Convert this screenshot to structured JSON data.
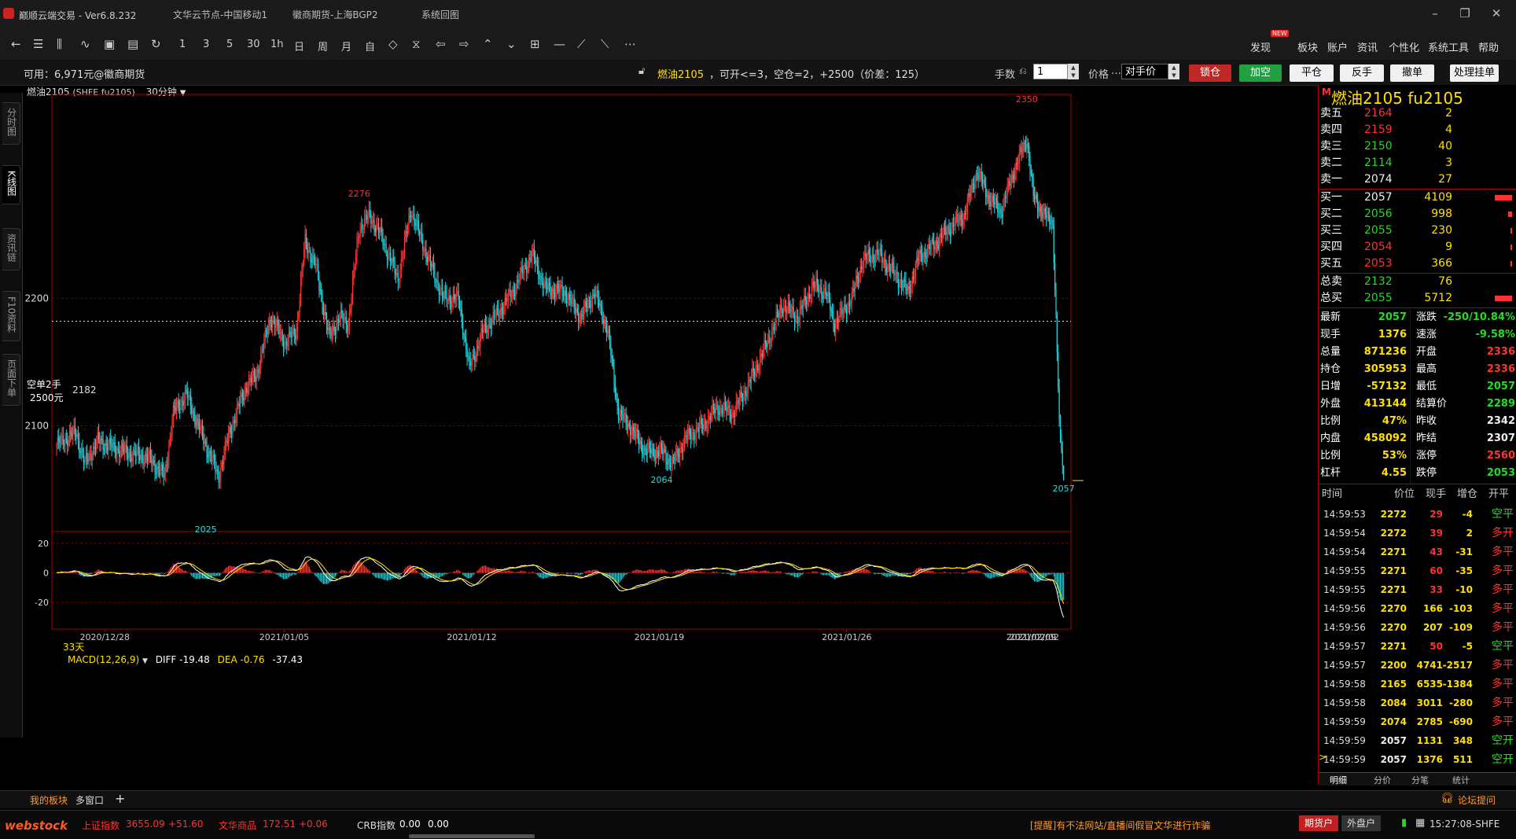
{
  "titlebar": {
    "app_title": "巅顺云端交易  -  Ver6.8.232",
    "tabs": [
      "文华云节点-中国移动1",
      "徽商期货-上海BGP2",
      "系统回图"
    ]
  },
  "menu": [
    "发现",
    "板块",
    "账户",
    "资讯",
    "个性化",
    "系统工具",
    "帮助"
  ],
  "menu_badge": "NEW",
  "toolbar": {
    "period_buttons": [
      "1",
      "3",
      "5",
      "30",
      "1h",
      "日",
      "周",
      "月",
      "自"
    ]
  },
  "orderbar": {
    "available": "可用：6,971元@徽商期货",
    "contract_name": "燃油2105",
    "position_info": "，可开<=3，空仓=2，+2500（价差：125）",
    "lots_label": "手数",
    "lots_value": "1",
    "price_label": "价格",
    "price_value": "对手价",
    "btn_lock": "锁仓",
    "btn_add_short": "加空",
    "btn_close": "平仓",
    "btn_reverse": "反手",
    "btn_cancel": "撤单",
    "btn_pending": "处理挂单"
  },
  "left_tabs": [
    "分时图",
    "K线图",
    "资讯链",
    "F10资料",
    "页面下单"
  ],
  "chart_header": {
    "contract": "燃油2105",
    "exchange": "(SHFE fu2105)",
    "period": "30分钟"
  },
  "chart_labels": {
    "short_position": "空单2手",
    "short_profit": "2500元",
    "position_line": "2182",
    "days": "33天",
    "macd_label": "MACD(12,26,9)",
    "diff": "DIFF -19.48",
    "dea": "DEA -0.76",
    "macd_value": "-37.43"
  },
  "chart_data": {
    "type": "candlestick",
    "y_ticks": [
      2100,
      2200
    ],
    "ylim": [
      2017,
      2360
    ],
    "x_ticks": [
      "2020/12/28",
      "2021/01/05",
      "2021/01/12",
      "2021/01/19",
      "2021/01/26",
      "2021/02/02",
      "2021/02/09"
    ],
    "annotations": [
      {
        "label": "2276",
        "value": 2276
      },
      {
        "label": "2350",
        "value": 2350
      },
      {
        "label": "2064",
        "value": 2064
      },
      {
        "label": "2025",
        "value": 2025
      },
      {
        "label": "2057",
        "value": 2057
      }
    ],
    "macd": {
      "y_ticks": [
        20,
        0,
        -20
      ],
      "ylim": [
        -38,
        28
      ]
    },
    "waypoints": [
      [
        0,
        2085
      ],
      [
        18,
        2095
      ],
      [
        26,
        2070
      ],
      [
        38,
        2088
      ],
      [
        55,
        2082
      ],
      [
        70,
        2078
      ],
      [
        85,
        2075
      ],
      [
        100,
        2060
      ],
      [
        108,
        2110
      ],
      [
        120,
        2125
      ],
      [
        138,
        2085
      ],
      [
        150,
        2060
      ],
      [
        160,
        2095
      ],
      [
        175,
        2130
      ],
      [
        185,
        2140
      ],
      [
        198,
        2185
      ],
      [
        212,
        2165
      ],
      [
        222,
        2175
      ],
      [
        230,
        2245
      ],
      [
        240,
        2225
      ],
      [
        252,
        2170
      ],
      [
        262,
        2185
      ],
      [
        270,
        2180
      ],
      [
        280,
        2255
      ],
      [
        290,
        2265
      ],
      [
        300,
        2250
      ],
      [
        316,
        2215
      ],
      [
        328,
        2270
      ],
      [
        338,
        2245
      ],
      [
        348,
        2222
      ],
      [
        358,
        2200
      ],
      [
        372,
        2200
      ],
      [
        382,
        2145
      ],
      [
        395,
        2175
      ],
      [
        410,
        2190
      ],
      [
        422,
        2205
      ],
      [
        440,
        2235
      ],
      [
        452,
        2208
      ],
      [
        470,
        2205
      ],
      [
        485,
        2185
      ],
      [
        498,
        2205
      ],
      [
        510,
        2175
      ],
      [
        520,
        2110
      ],
      [
        530,
        2100
      ],
      [
        545,
        2080
      ],
      [
        560,
        2080
      ],
      [
        570,
        2070
      ],
      [
        582,
        2090
      ],
      [
        598,
        2100
      ],
      [
        612,
        2115
      ],
      [
        626,
        2110
      ],
      [
        642,
        2135
      ],
      [
        660,
        2170
      ],
      [
        672,
        2195
      ],
      [
        686,
        2185
      ],
      [
        700,
        2210
      ],
      [
        712,
        2205
      ],
      [
        720,
        2180
      ],
      [
        736,
        2200
      ],
      [
        746,
        2230
      ],
      [
        760,
        2235
      ],
      [
        775,
        2220
      ],
      [
        788,
        2205
      ],
      [
        798,
        2232
      ],
      [
        810,
        2240
      ],
      [
        826,
        2255
      ],
      [
        840,
        2265
      ],
      [
        852,
        2300
      ],
      [
        862,
        2280
      ],
      [
        874,
        2268
      ],
      [
        886,
        2300
      ],
      [
        898,
        2325
      ],
      [
        904,
        2280
      ],
      [
        914,
        2265
      ],
      [
        922,
        2260
      ],
      [
        928,
        2105
      ],
      [
        932,
        2057
      ]
    ]
  },
  "quote": {
    "title": "燃油2105  fu2105",
    "asks": [
      {
        "label": "卖五",
        "price": "2164",
        "vol": "2"
      },
      {
        "label": "卖四",
        "price": "2159",
        "vol": "4"
      },
      {
        "label": "卖三",
        "price": "2150",
        "vol": "40"
      },
      {
        "label": "卖二",
        "price": "2114",
        "vol": "3"
      },
      {
        "label": "卖一",
        "price": "2074",
        "vol": "27"
      }
    ],
    "bids": [
      {
        "label": "买一",
        "price": "2057",
        "vol": "4109",
        "bar": 1.0
      },
      {
        "label": "买二",
        "price": "2056",
        "vol": "998",
        "bar": 0.24
      },
      {
        "label": "买三",
        "price": "2055",
        "vol": "230",
        "bar": 0.06
      },
      {
        "label": "买四",
        "price": "2054",
        "vol": "9",
        "bar": 0.0
      },
      {
        "label": "买五",
        "price": "2053",
        "vol": "366",
        "bar": 0.09
      }
    ],
    "totals": [
      {
        "label": "总卖",
        "price": "2132",
        "vol": "76",
        "bar": 0.0
      },
      {
        "label": "总买",
        "price": "2055",
        "vol": "5712",
        "bar": 1.0
      }
    ],
    "stats": [
      [
        "最新",
        "2057",
        "涨跌",
        "-250/10.84%"
      ],
      [
        "现手",
        "1376",
        "速涨",
        "-9.58%"
      ],
      [
        "总量",
        "871236",
        "开盘",
        "2336"
      ],
      [
        "持仓",
        "305953",
        "最高",
        "2336"
      ],
      [
        "日增",
        "-57132",
        "最低",
        "2057"
      ],
      [
        "外盘",
        "413144",
        "结算价",
        "2289"
      ],
      [
        "比例",
        "47%",
        "昨收",
        "2342"
      ],
      [
        "内盘",
        "458092",
        "昨结",
        "2307"
      ],
      [
        "比例",
        "53%",
        "涨停",
        "2560"
      ],
      [
        "杠杆",
        "4.55",
        "跌停",
        "2053"
      ]
    ],
    "trade_headers": [
      "时间",
      "价位",
      "现手",
      "增仓",
      "开平"
    ],
    "trades": [
      [
        "14:59:53",
        "2272",
        "29",
        "-4",
        "空平"
      ],
      [
        "14:59:54",
        "2272",
        "39",
        "2",
        "多开"
      ],
      [
        "14:59:54",
        "2271",
        "43",
        "-31",
        "多平"
      ],
      [
        "14:59:55",
        "2271",
        "60",
        "-35",
        "多平"
      ],
      [
        "14:59:55",
        "2271",
        "33",
        "-10",
        "多平"
      ],
      [
        "14:59:56",
        "2270",
        "166",
        "-103",
        "多平"
      ],
      [
        "14:59:56",
        "2270",
        "207",
        "-109",
        "多平"
      ],
      [
        "14:59:57",
        "2271",
        "50",
        "-5",
        "空平"
      ],
      [
        "14:59:57",
        "2200",
        "4741",
        "-2517",
        "多平"
      ],
      [
        "14:59:58",
        "2165",
        "6535",
        "-1384",
        "多平"
      ],
      [
        "14:59:58",
        "2084",
        "3011",
        "-280",
        "多平"
      ],
      [
        "14:59:59",
        "2074",
        "2785",
        "-690",
        "多平"
      ],
      [
        "14:59:59",
        "2057",
        "1131",
        "348",
        "空开"
      ],
      [
        "14:59:59",
        "2057",
        "1376",
        "511",
        "空开"
      ]
    ],
    "bottom_tabs": [
      "明细",
      "分价",
      "分笔",
      "统计"
    ]
  },
  "bottombar": {
    "tabs": [
      "我的板块",
      "多窗口"
    ],
    "add": "+",
    "forum": "论坛提问"
  },
  "statusbar": {
    "logo": "webstock",
    "idx1_name": "上证指数",
    "idx1_val": "3655.09",
    "idx1_chg": "+51.60",
    "idx2_name": "文华商品",
    "idx2_val": "172.51",
    "idx2_chg": "+0.06",
    "idx3_name": "CRB指数",
    "idx3_val": "0.00",
    "idx3_chg": "0.00",
    "notice": "[提醒]有不法网站/直播间假冒文华进行诈骗",
    "acct_futures": "期货户",
    "acct_foreign": "外盘户",
    "time": "15:27:08-SHFE"
  },
  "colors": {
    "up": "#ff3333",
    "down": "#20d8e0",
    "flat": "#22dd22",
    "accent": "#ffe000",
    "frame": "#aa0000"
  }
}
